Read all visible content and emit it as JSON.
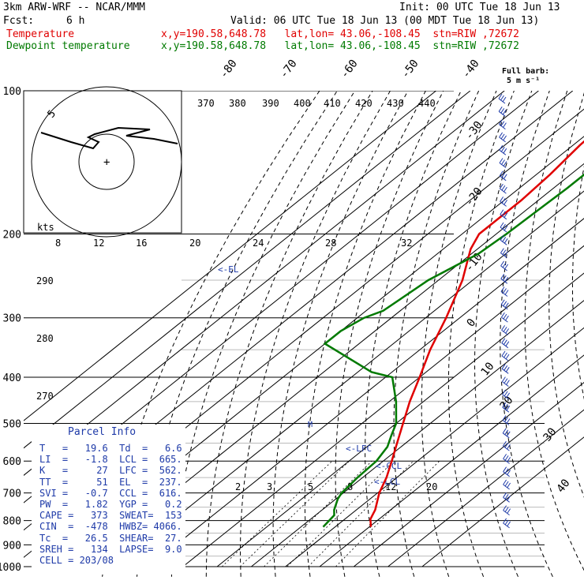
{
  "header": {
    "model": "3km ARW-WRF -- NCAR/MMM",
    "init": "Init: 00 UTC Tue 18 Jun 13",
    "fcst_label": "Fcst:",
    "fcst_value": "6 h",
    "valid": "Valid: 06 UTC Tue 18 Jun 13 (00 MDT Tue 18 Jun 13)",
    "temp_label": "Temperature",
    "temp_info": "x,y=190.58,648.78   lat,lon= 43.06,-108.45  stn=RIW ,72672",
    "dew_label": "Dewpoint temperature",
    "dew_info": "x,y=190.58,648.78   lat,lon= 43.06,-108.45  stn=RIW ,72672",
    "barb_note_1": "Full barb:",
    "barb_note_2": "5 m s⁻¹"
  },
  "hodograph": {
    "kts_label": "kts",
    "ring_label": "5",
    "speed_ticks": [
      "8",
      "12",
      "16",
      "20",
      "24",
      "28",
      "32"
    ]
  },
  "parcel": {
    "title": "Parcel Info",
    "rows": [
      "T   =   19.6  Td  =   6.6",
      "LI  =   -1.8  LCL =  665.",
      "K   =     27  LFC =  562.",
      "TT  =     51  EL  =  237.",
      "SVI =   -0.7  CCL =  616.",
      "PW  =   1.82  YGP =   0.2",
      "CAPE =   373  SWEAT=  153",
      "CIN  =  -478  HWBZ= 4066.",
      "Tc  =   26.5  SHEAR=  27.",
      "SREH =   134  LAPSE=  9.0",
      "CELL = 203/08"
    ]
  },
  "chart_data": {
    "type": "line",
    "title": "",
    "xlabel": "",
    "ylabel": "",
    "pressure_ticks": [
      100,
      200,
      300,
      400,
      500,
      600,
      700,
      800,
      900,
      1000
    ],
    "temperature_ticks": [
      -80,
      -70,
      -60,
      -50,
      -40,
      -30,
      -20,
      -10,
      0,
      10,
      20,
      30,
      40
    ],
    "theta_labels": [
      {
        "text": "370"
      },
      {
        "text": "380"
      },
      {
        "text": "390"
      },
      {
        "text": "400"
      },
      {
        "text": "410"
      },
      {
        "text": "420"
      },
      {
        "text": "430"
      },
      {
        "text": "440"
      },
      {
        "text": "290"
      },
      {
        "text": "280"
      },
      {
        "text": "270"
      }
    ],
    "mixing_ratio_labels": [
      "2",
      "3",
      "5",
      "8",
      "12",
      "20"
    ],
    "levels": [
      {
        "text": "<-EL"
      },
      {
        "text": "<-LFC"
      },
      {
        "text": "<-CCL"
      },
      {
        "text": "<-LCL"
      }
    ],
    "series": [
      {
        "name": "Temperature",
        "color": "#e00000",
        "p": [
          825,
          795,
          760,
          700,
          650,
          600,
          560,
          500,
          450,
          400,
          350,
          300,
          250,
          230,
          215,
          200,
          185,
          170,
          150,
          130,
          110,
          100
        ],
        "t": [
          20.5,
          17.5,
          15.5,
          10.5,
          7,
          2.5,
          -1.5,
          -8,
          -14,
          -20,
          -27,
          -34,
          -43,
          -48,
          -52,
          -55,
          -55,
          -55,
          -56,
          -58,
          -59,
          -60
        ]
      },
      {
        "name": "Dewpoint temperature",
        "color": "#007a00",
        "p": [
          825,
          780,
          760,
          720,
          700,
          650,
          600,
          560,
          530,
          500,
          450,
          400,
          390,
          340,
          320,
          300,
          290,
          250,
          220,
          200,
          160,
          130,
          120,
          100
        ],
        "t": [
          6.5,
          5.5,
          3.5,
          0.5,
          -0.5,
          -1.5,
          -2,
          -4,
          -7,
          -10,
          -18,
          -28,
          -36,
          -60,
          -60,
          -58,
          -55,
          -53,
          -48,
          -47,
          -46,
          -46,
          -44,
          -41
        ]
      }
    ]
  }
}
